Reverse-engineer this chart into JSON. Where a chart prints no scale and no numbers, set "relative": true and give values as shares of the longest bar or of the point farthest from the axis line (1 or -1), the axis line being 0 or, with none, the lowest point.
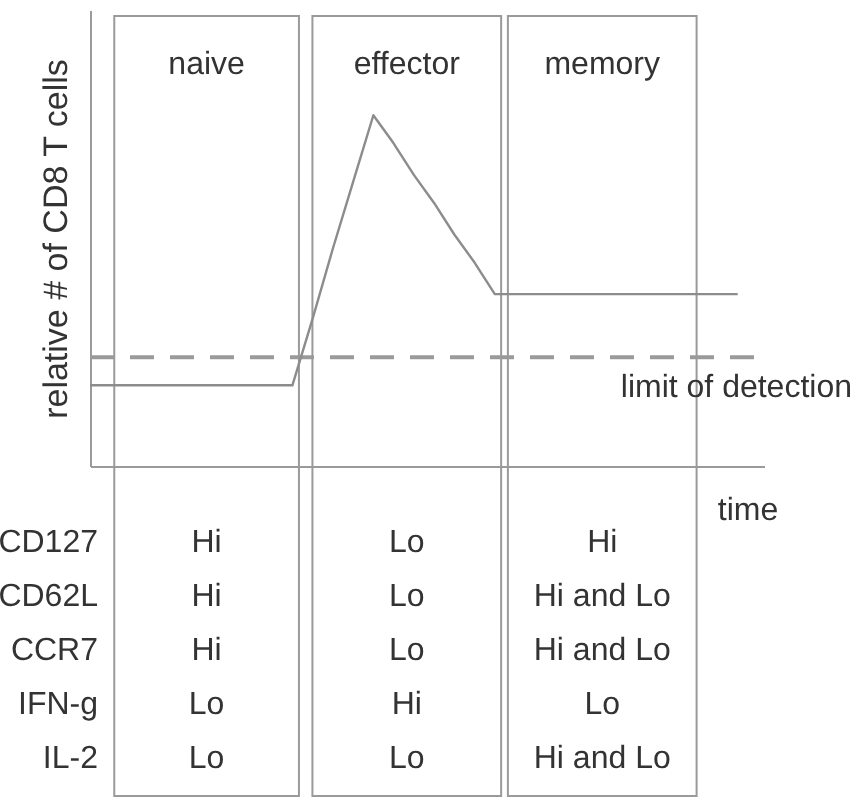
{
  "chart_data": {
    "type": "line",
    "relative": true,
    "xlabel": "time",
    "ylabel": "relative # of CD8 T cells",
    "categories": [
      null,
      null,
      null,
      null,
      null,
      null,
      null,
      null,
      null,
      null,
      null,
      null,
      null,
      null,
      null,
      null,
      null,
      null,
      null,
      null,
      null,
      null,
      null,
      null,
      null,
      null,
      null,
      null,
      null,
      null,
      null,
      null,
      null
    ],
    "series": [
      {
        "color": "#8c8c8c",
        "values": [
          0.23,
          0.23,
          0.23,
          0.23,
          0.23,
          0.23,
          0.23,
          0.23,
          0.23,
          0.23,
          0.23,
          0.42,
          0.62,
          0.81,
          1,
          0.92,
          0.83,
          0.75,
          0.66,
          0.58,
          0.49,
          0.49,
          0.49,
          0.49,
          0.49,
          0.49,
          0.49,
          0.49,
          0.49,
          0.49,
          0.49,
          0.49,
          0.49
        ]
      }
    ],
    "ref_lines": [
      {
        "axis": "y",
        "value": 0.31,
        "label": "limit of detection",
        "color": "#9a9a9a",
        "line_style": "dashed"
      }
    ],
    "annotations": [
      "naive",
      "effector",
      "memory",
      "CD127",
      "Hi",
      "Lo",
      "Hi",
      "CD62L",
      "Hi",
      "Lo",
      "Hi and Lo",
      "CCR7",
      "Hi",
      "Lo",
      "Hi and Lo",
      "IFN-g",
      "Lo",
      "Hi",
      "Lo",
      "IL-2",
      "Lo",
      "Lo",
      "Hi and Lo"
    ],
    "grid": false,
    "marker": "none",
    "line_style": "solid",
    "tick_labels": false
  }
}
